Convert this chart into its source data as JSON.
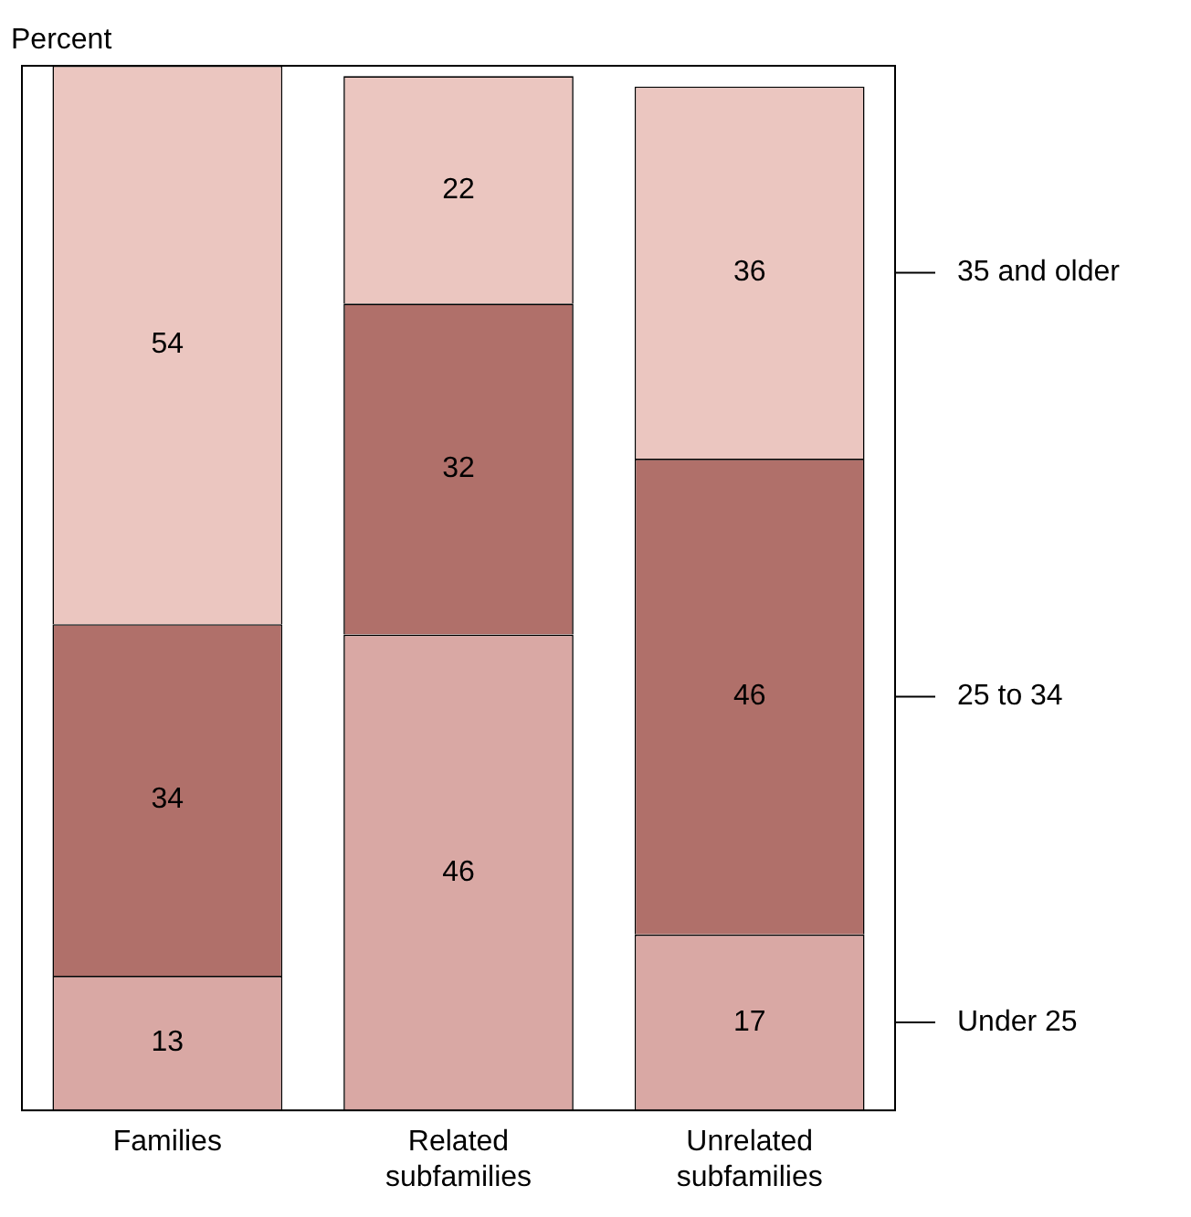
{
  "chart_data": {
    "type": "bar",
    "stacked": true,
    "ylabel": "Percent",
    "categories": [
      "Families",
      "Related subfamilies",
      "Unrelated subfamilies"
    ],
    "series": [
      {
        "name": "Under 25",
        "color": "#d9a8a4",
        "values": [
          13,
          46,
          17
        ]
      },
      {
        "name": "25 to 34",
        "color": "#b0706a",
        "values": [
          34,
          32,
          46
        ]
      },
      {
        "name": "35 and older",
        "color": "#ebc6c0",
        "values": [
          54,
          22,
          36
        ]
      }
    ],
    "ylim": [
      0,
      101
    ],
    "data_labels": true,
    "legend": "right",
    "tick_labels": "x",
    "grid": false
  }
}
